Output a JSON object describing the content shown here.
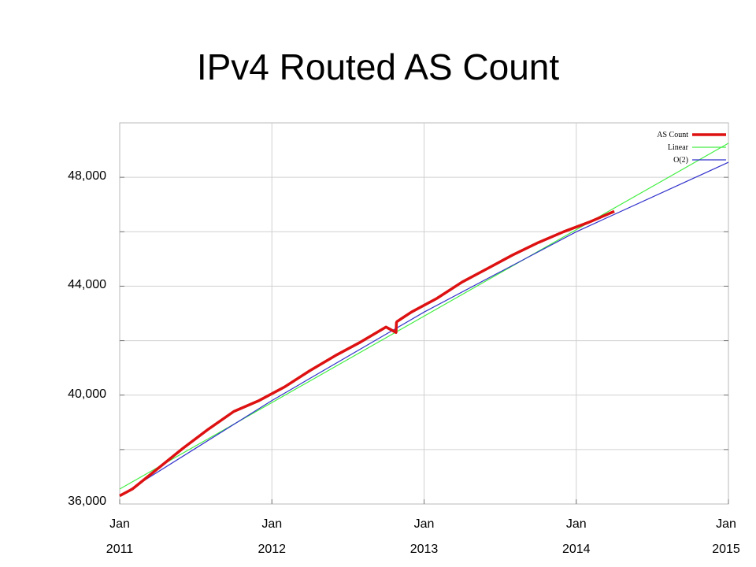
{
  "slide": {
    "title": "IPv4 Routed AS Count"
  },
  "chart_data": {
    "type": "line",
    "title": "IPv4 Routed AS Count",
    "xlabel": "",
    "ylabel": "",
    "xlim": [
      "2011-01",
      "2015-01"
    ],
    "ylim": [
      36000,
      50000
    ],
    "grid": true,
    "legend_position": "top-right",
    "yticks": [
      36000,
      40000,
      44000,
      48000
    ],
    "ytick_labels": [
      "36,000",
      "40,000",
      "44,000",
      "48,000"
    ],
    "xticks": [
      "2011-01",
      "2012-01",
      "2013-01",
      "2014-01",
      "2015-01"
    ],
    "xtick_labels": [
      {
        "month": "Jan",
        "year": "2011"
      },
      {
        "month": "Jan",
        "year": "2012"
      },
      {
        "month": "Jan",
        "year": "2013"
      },
      {
        "month": "Jan",
        "year": "2014"
      },
      {
        "month": "Jan",
        "year": "2015"
      }
    ],
    "series": [
      {
        "name": "AS Count",
        "color": "#dd1111",
        "x": [
          "2011-01",
          "2011-02",
          "2011-04",
          "2011-06",
          "2011-08",
          "2011-10",
          "2011-12",
          "2012-02",
          "2012-04",
          "2012-06",
          "2012-08",
          "2012-10",
          "2012-10-25",
          "2012-10-26",
          "2012-10-27",
          "2012-12",
          "2013-02",
          "2013-04",
          "2013-06",
          "2013-08",
          "2013-10",
          "2013-12",
          "2014-02",
          "2014-04"
        ],
        "values": [
          36300,
          36550,
          37300,
          38050,
          38750,
          39400,
          39800,
          40300,
          40900,
          41450,
          41950,
          42500,
          42300,
          42650,
          42700,
          43050,
          43550,
          44150,
          44650,
          45150,
          45600,
          46000,
          46350,
          46750
        ]
      },
      {
        "name": "Linear",
        "color": "#44ee44",
        "x": [
          "2011-01",
          "2015-01"
        ],
        "values": [
          36550,
          49250
        ]
      },
      {
        "name": "O(2)",
        "color": "#3333cc",
        "x": [
          "2011-01",
          "2012-01",
          "2013-01",
          "2014-01",
          "2015-01"
        ],
        "values": [
          36300,
          39800,
          43050,
          46000,
          48550
        ]
      }
    ]
  }
}
